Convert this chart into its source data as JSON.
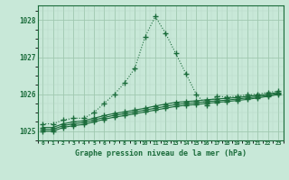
{
  "title": "Graphe pression niveau de la mer (hPa)",
  "background_color": "#c8e8d8",
  "grid_major_color": "#a0c8b0",
  "grid_minor_color": "#b8d8c8",
  "line_color": "#1a6b3a",
  "xlim": [
    -0.5,
    23.5
  ],
  "ylim": [
    1024.75,
    1028.4
  ],
  "yticks": [
    1025,
    1026,
    1027,
    1028
  ],
  "xticks": [
    0,
    1,
    2,
    3,
    4,
    5,
    6,
    7,
    8,
    9,
    10,
    11,
    12,
    13,
    14,
    15,
    16,
    17,
    18,
    19,
    20,
    21,
    22,
    23
  ],
  "series1_x": [
    0,
    1,
    2,
    3,
    4,
    5,
    6,
    7,
    8,
    9,
    10,
    11,
    12,
    13,
    14,
    15,
    16,
    17,
    18,
    19,
    20,
    21,
    22,
    23
  ],
  "series1_y": [
    1025.2,
    1025.2,
    1025.3,
    1025.35,
    1025.35,
    1025.5,
    1025.75,
    1026.0,
    1026.3,
    1026.7,
    1027.55,
    1028.1,
    1027.65,
    1027.1,
    1026.55,
    1026.0,
    1025.7,
    1025.95,
    1025.92,
    1025.95,
    1025.98,
    1026.0,
    1026.05,
    1026.08
  ],
  "series2_x": [
    0,
    1,
    2,
    3,
    4,
    5,
    6,
    7,
    8,
    9,
    10,
    11,
    12,
    13,
    14,
    15,
    16,
    17,
    18,
    19,
    20,
    21,
    22,
    23
  ],
  "series2_y": [
    1025.1,
    1025.1,
    1025.2,
    1025.25,
    1025.28,
    1025.35,
    1025.42,
    1025.48,
    1025.52,
    1025.57,
    1025.62,
    1025.68,
    1025.73,
    1025.78,
    1025.8,
    1025.82,
    1025.85,
    1025.87,
    1025.89,
    1025.91,
    1025.94,
    1025.97,
    1026.0,
    1026.05
  ],
  "series3_x": [
    0,
    1,
    2,
    3,
    4,
    5,
    6,
    7,
    8,
    9,
    10,
    11,
    12,
    13,
    14,
    15,
    16,
    17,
    18,
    19,
    20,
    21,
    22,
    23
  ],
  "series3_y": [
    1025.05,
    1025.05,
    1025.15,
    1025.2,
    1025.23,
    1025.3,
    1025.37,
    1025.43,
    1025.47,
    1025.52,
    1025.57,
    1025.62,
    1025.67,
    1025.72,
    1025.75,
    1025.77,
    1025.8,
    1025.82,
    1025.84,
    1025.87,
    1025.9,
    1025.93,
    1025.97,
    1026.02
  ],
  "series4_x": [
    0,
    1,
    2,
    3,
    4,
    5,
    6,
    7,
    8,
    9,
    10,
    11,
    12,
    13,
    14,
    15,
    16,
    17,
    18,
    19,
    20,
    21,
    22,
    23
  ],
  "series4_y": [
    1025.0,
    1025.0,
    1025.1,
    1025.15,
    1025.18,
    1025.25,
    1025.32,
    1025.38,
    1025.42,
    1025.47,
    1025.52,
    1025.57,
    1025.62,
    1025.67,
    1025.7,
    1025.72,
    1025.75,
    1025.78,
    1025.8,
    1025.83,
    1025.86,
    1025.9,
    1025.94,
    1025.99
  ]
}
